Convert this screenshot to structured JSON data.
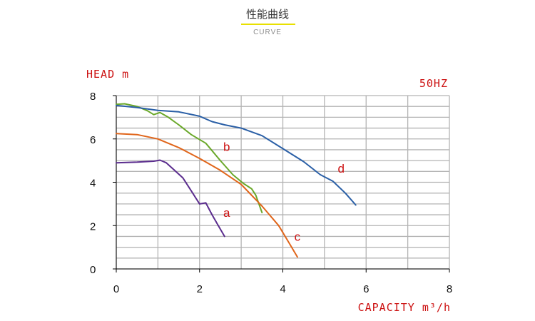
{
  "header": {
    "title": "性能曲线",
    "subtitle": "CURVE"
  },
  "chart_data": {
    "type": "line",
    "frequency_label": "50HZ",
    "ylabel": "HEAD m",
    "xlabel": "CAPACITY m³/h",
    "xlim": [
      0,
      8
    ],
    "ylim": [
      0,
      8
    ],
    "x_major_ticks": [
      0,
      2,
      4,
      6,
      8
    ],
    "y_major_ticks": [
      0,
      2,
      4,
      6,
      8
    ],
    "grid": true,
    "colors": {
      "grid": "#b3b3b3",
      "text_red": "#cc1111"
    },
    "series": [
      {
        "name": "a",
        "color": "#5b2d8e",
        "points": [
          [
            0,
            4.9
          ],
          [
            0.5,
            4.93
          ],
          [
            0.9,
            4.97
          ],
          [
            1.05,
            5.02
          ],
          [
            1.2,
            4.9
          ],
          [
            1.4,
            4.55
          ],
          [
            1.6,
            4.2
          ],
          [
            1.8,
            3.6
          ],
          [
            2.0,
            3.0
          ],
          [
            2.15,
            3.05
          ],
          [
            2.3,
            2.5
          ],
          [
            2.45,
            2.0
          ],
          [
            2.6,
            1.5
          ]
        ],
        "label_at": [
          2.65,
          2.4
        ]
      },
      {
        "name": "b",
        "color": "#6aa82a",
        "points": [
          [
            0,
            7.6
          ],
          [
            0.2,
            7.62
          ],
          [
            0.5,
            7.5
          ],
          [
            0.75,
            7.3
          ],
          [
            0.9,
            7.12
          ],
          [
            1.05,
            7.22
          ],
          [
            1.25,
            7.0
          ],
          [
            1.5,
            6.65
          ],
          [
            1.8,
            6.2
          ],
          [
            2.15,
            5.8
          ],
          [
            2.5,
            5.0
          ],
          [
            2.8,
            4.35
          ],
          [
            3.05,
            3.95
          ],
          [
            3.25,
            3.7
          ],
          [
            3.35,
            3.4
          ],
          [
            3.5,
            2.6
          ]
        ],
        "label_at": [
          2.65,
          5.45
        ]
      },
      {
        "name": "c",
        "color": "#e0651a",
        "points": [
          [
            0,
            6.25
          ],
          [
            0.5,
            6.2
          ],
          [
            1.0,
            6.0
          ],
          [
            1.5,
            5.6
          ],
          [
            2.0,
            5.1
          ],
          [
            2.5,
            4.55
          ],
          [
            3.0,
            3.9
          ],
          [
            3.5,
            2.9
          ],
          [
            3.9,
            2.0
          ],
          [
            4.15,
            1.2
          ],
          [
            4.35,
            0.55
          ]
        ],
        "label_at": [
          4.35,
          1.3
        ]
      },
      {
        "name": "d",
        "color": "#2a5fa6",
        "points": [
          [
            0,
            7.55
          ],
          [
            0.5,
            7.45
          ],
          [
            1.0,
            7.32
          ],
          [
            1.5,
            7.25
          ],
          [
            2.0,
            7.05
          ],
          [
            2.3,
            6.8
          ],
          [
            2.6,
            6.65
          ],
          [
            3.0,
            6.5
          ],
          [
            3.5,
            6.15
          ],
          [
            4.0,
            5.55
          ],
          [
            4.5,
            4.95
          ],
          [
            4.9,
            4.35
          ],
          [
            5.2,
            4.05
          ],
          [
            5.5,
            3.5
          ],
          [
            5.75,
            2.95
          ]
        ],
        "label_at": [
          5.4,
          4.45
        ]
      }
    ]
  }
}
